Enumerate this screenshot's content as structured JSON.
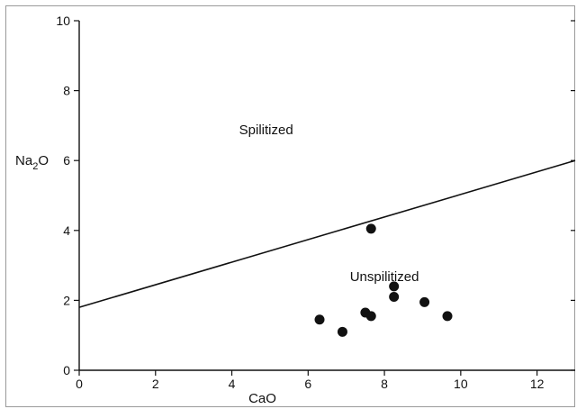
{
  "chart_data": {
    "type": "scatter",
    "xlabel": "CaO",
    "ylabel": {
      "main": "Na",
      "sub": "2",
      "rest": "O"
    },
    "xlim": [
      0,
      13
    ],
    "ylim": [
      0,
      10
    ],
    "x_ticks": [
      0,
      2,
      4,
      6,
      8,
      10,
      12
    ],
    "y_ticks": [
      0,
      2,
      4,
      6,
      8,
      10
    ],
    "x_tick_labels": [
      "0",
      "2",
      "4",
      "6",
      "8",
      "10",
      "12"
    ],
    "y_tick_labels": [
      "0",
      "2",
      "4",
      "6",
      "8",
      "10"
    ],
    "grid": false,
    "points": [
      {
        "x": 6.3,
        "y": 1.45
      },
      {
        "x": 6.9,
        "y": 1.1
      },
      {
        "x": 7.5,
        "y": 1.65
      },
      {
        "x": 7.65,
        "y": 1.55
      },
      {
        "x": 7.65,
        "y": 4.05
      },
      {
        "x": 8.25,
        "y": 2.4
      },
      {
        "x": 8.25,
        "y": 2.1
      },
      {
        "x": 9.05,
        "y": 1.95
      },
      {
        "x": 9.65,
        "y": 1.55
      }
    ],
    "boundary_line": {
      "x": [
        0,
        13
      ],
      "y": [
        1.8,
        6.0
      ]
    },
    "annotations": [
      {
        "text": "Spilitized",
        "x": 4.9,
        "y": 6.75
      },
      {
        "text": "Unspilitized",
        "x": 8.0,
        "y": 2.55
      }
    ]
  }
}
